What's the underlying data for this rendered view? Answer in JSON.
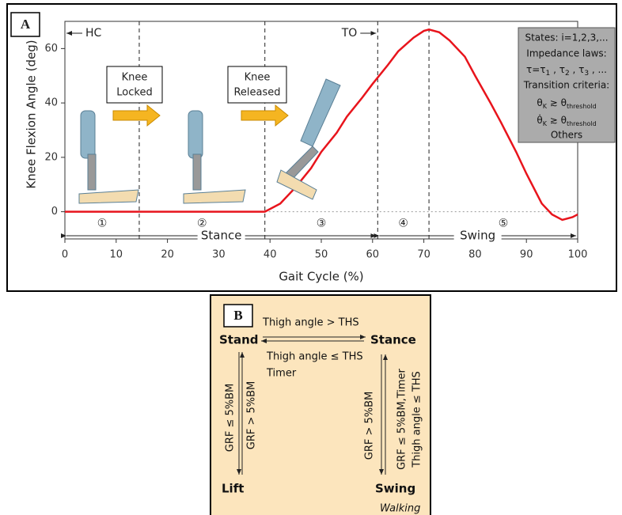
{
  "panel_labels": [
    "A",
    "B"
  ],
  "chart_data": {
    "type": "line",
    "xlabel": "Gait Cycle (%)",
    "ylabel": "Knee Flexion Angle (deg)",
    "x": [
      0,
      5,
      10,
      15,
      20,
      25,
      30,
      35,
      39,
      42,
      45,
      48,
      50,
      53,
      55,
      58,
      60,
      63,
      65,
      68,
      70,
      71,
      73,
      75,
      78,
      80,
      83,
      85,
      88,
      90,
      93,
      95,
      97,
      99,
      100
    ],
    "values": [
      0,
      0,
      0,
      0,
      0,
      0,
      0,
      0,
      0,
      3,
      9,
      16,
      22,
      29,
      35,
      42,
      47,
      54,
      59,
      64,
      66.5,
      67,
      66,
      63,
      57,
      50,
      40,
      33,
      22,
      14,
      3,
      -1,
      -3,
      -2,
      -1
    ],
    "color": "#e8141c",
    "xlim": [
      0,
      100
    ],
    "ylim": [
      -10,
      70
    ],
    "xticks": [
      0,
      10,
      20,
      30,
      40,
      50,
      60,
      70,
      80,
      90,
      100
    ],
    "yticks": [
      0,
      20,
      40,
      60
    ],
    "phase_boundaries": [
      14.5,
      39,
      61,
      71
    ],
    "phases": [
      "①",
      "②",
      "③",
      "④",
      "⑤"
    ],
    "events": [
      "HC",
      "TO"
    ],
    "periods": [
      "Stance",
      "Swing"
    ],
    "annotations": [
      [
        "Knee",
        "Locked"
      ],
      [
        "Knee",
        "Released"
      ]
    ],
    "info_box": {
      "states": "States: i=1,2,3,...",
      "laws_title": "Impedance laws:",
      "laws": [
        "τ=τ",
        "1",
        " , τ",
        "2",
        " , τ",
        "3",
        " , ..."
      ],
      "criteria_title": "Transition criteria:",
      "criteria": [
        [
          "θ",
          "K",
          " ≳ θ",
          "threshold"
        ],
        [
          "θ̇",
          "K",
          " ≳ θ",
          "threshold"
        ]
      ],
      "others": "Others"
    }
  },
  "state_machine": {
    "nodes": [
      "Stand",
      "Stance",
      "Lift",
      "Swing"
    ],
    "mode": "Walking",
    "transitions": [
      "Thigh angle > THS",
      "Thigh angle ≤ THS",
      "Timer",
      "GRF ≤ 5%BM",
      "GRF > 5%BM",
      "GRF > 5%BM",
      "GRF ≤ 5%BM,Timer",
      "Thigh angle ≤ THS"
    ]
  }
}
